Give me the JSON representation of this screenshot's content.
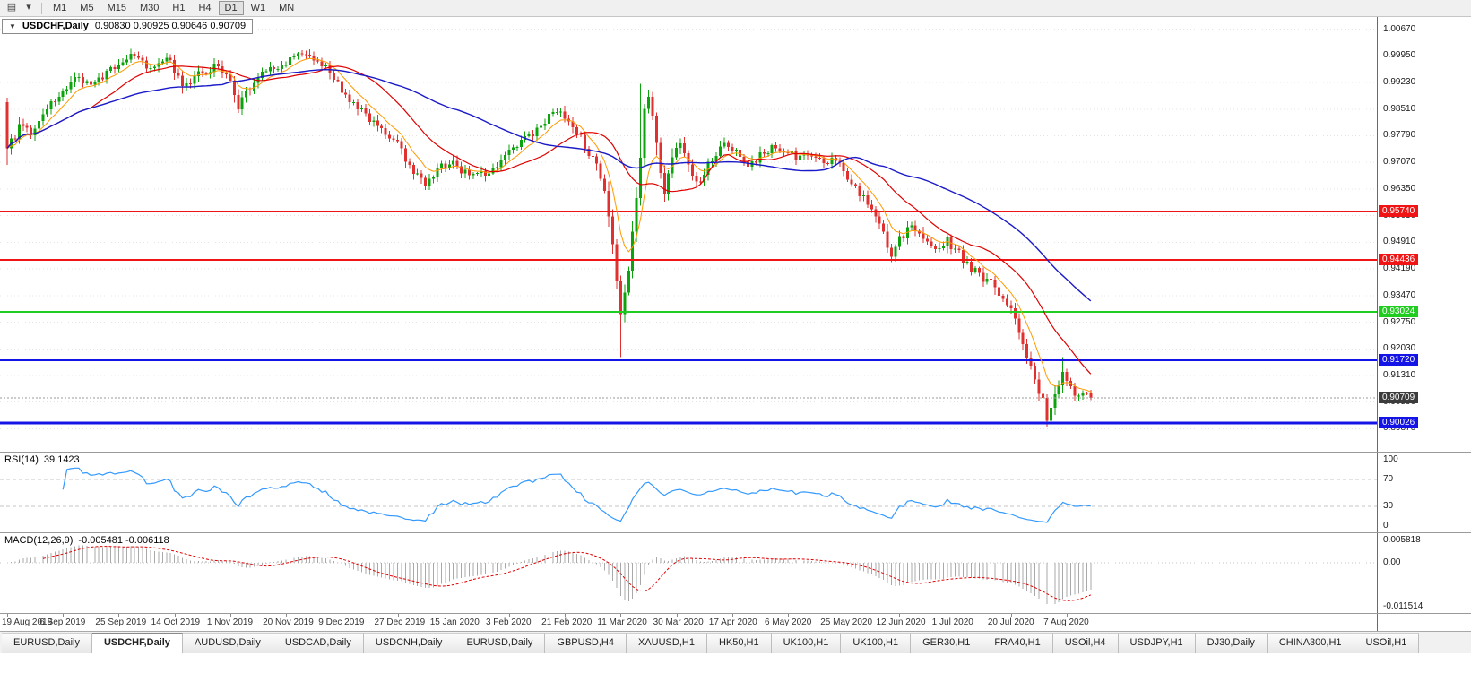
{
  "toolbar": {
    "icons": [
      {
        "name": "charts-icon",
        "glyph": "▤"
      },
      {
        "name": "dropdown-caret-icon",
        "glyph": "▾"
      }
    ],
    "timeframes": [
      "M1",
      "M5",
      "M15",
      "M30",
      "H1",
      "H4",
      "D1",
      "W1",
      "MN"
    ],
    "active_timeframe": "D1"
  },
  "chart": {
    "title_caret": "▼",
    "title": "USDCHF,Daily",
    "ohlc_label": "0.90830 0.90925 0.90646 0.90709"
  },
  "chart_data": {
    "type": "candlestick",
    "symbol": "USDCHF",
    "timeframe": "Daily",
    "candle_count": 273,
    "price_range": [
      0.8925,
      1.01
    ],
    "price_axis_labels": [
      "1.00670",
      "0.99950",
      "0.99230",
      "0.98510",
      "0.97790",
      "0.97070",
      "0.96350",
      "0.95630",
      "0.94910",
      "0.94190",
      "0.93470",
      "0.92750",
      "0.92030",
      "0.91310",
      "0.90590",
      "0.89870"
    ],
    "x_axis_dates": [
      "19 Aug 2019",
      "6 Sep 2019",
      "25 Sep 2019",
      "14 Oct 2019",
      "1 Nov 2019",
      "20 Nov 2019",
      "9 Dec 2019",
      "27 Dec 2019",
      "15 Jan 2020",
      "3 Feb 2020",
      "21 Feb 2020",
      "11 Mar 2020",
      "30 Mar 2020",
      "17 Apr 2020",
      "6 May 2020",
      "25 May 2020",
      "12 Jun 2020",
      "1 Jul 2020",
      "20 Jul 2020",
      "7 Aug 2020"
    ],
    "candles_per_date_label": 14,
    "first_candle": {
      "open": 0.987,
      "high": 0.9882,
      "low": 0.97,
      "close": 0.9745
    },
    "last_candle": {
      "open": 0.9083,
      "high": 0.90925,
      "low": 0.90646,
      "close": 0.90709
    },
    "close_anchors": [
      [
        0,
        0.9745
      ],
      [
        3,
        0.98
      ],
      [
        6,
        0.979
      ],
      [
        10,
        0.9855
      ],
      [
        14,
        0.99
      ],
      [
        18,
        0.9935
      ],
      [
        22,
        0.992
      ],
      [
        28,
        0.9975
      ],
      [
        32,
        0.9995
      ],
      [
        36,
        0.996
      ],
      [
        40,
        1.0
      ],
      [
        44,
        0.9915
      ],
      [
        48,
        0.9945
      ],
      [
        52,
        0.9965
      ],
      [
        56,
        0.993
      ],
      [
        58,
        0.986
      ],
      [
        62,
        0.992
      ],
      [
        66,
        0.996
      ],
      [
        70,
        0.9975
      ],
      [
        74,
        1.0005
      ],
      [
        78,
        0.999
      ],
      [
        82,
        0.9935
      ],
      [
        86,
        0.987
      ],
      [
        90,
        0.984
      ],
      [
        94,
        0.979
      ],
      [
        98,
        0.9755
      ],
      [
        102,
        0.968
      ],
      [
        105,
        0.9645
      ],
      [
        108,
        0.969
      ],
      [
        112,
        0.971
      ],
      [
        116,
        0.9665
      ],
      [
        120,
        0.968
      ],
      [
        124,
        0.9715
      ],
      [
        128,
        0.9755
      ],
      [
        132,
        0.978
      ],
      [
        136,
        0.983
      ],
      [
        139,
        0.985
      ],
      [
        142,
        0.98
      ],
      [
        145,
        0.9755
      ],
      [
        148,
        0.97
      ],
      [
        150,
        0.962
      ],
      [
        152,
        0.948
      ],
      [
        154,
        0.929
      ],
      [
        156,
        0.942
      ],
      [
        158,
        0.962
      ],
      [
        160,
        0.984
      ],
      [
        161,
        0.989
      ],
      [
        163,
        0.976
      ],
      [
        165,
        0.962
      ],
      [
        167,
        0.972
      ],
      [
        169,
        0.977
      ],
      [
        171,
        0.969
      ],
      [
        174,
        0.965
      ],
      [
        177,
        0.972
      ],
      [
        180,
        0.976
      ],
      [
        183,
        0.9745
      ],
      [
        186,
        0.97
      ],
      [
        189,
        0.9725
      ],
      [
        192,
        0.9745
      ],
      [
        196,
        0.974
      ],
      [
        199,
        0.9715
      ],
      [
        202,
        0.9735
      ],
      [
        205,
        0.97
      ],
      [
        208,
        0.972
      ],
      [
        211,
        0.966
      ],
      [
        214,
        0.962
      ],
      [
        217,
        0.959
      ],
      [
        220,
        0.952
      ],
      [
        222,
        0.944
      ],
      [
        224,
        0.95
      ],
      [
        227,
        0.9535
      ],
      [
        230,
        0.949
      ],
      [
        233,
        0.9465
      ],
      [
        236,
        0.9495
      ],
      [
        239,
        0.946
      ],
      [
        242,
        0.942
      ],
      [
        245,
        0.939
      ],
      [
        248,
        0.9375
      ],
      [
        250,
        0.934
      ],
      [
        252,
        0.931
      ],
      [
        254,
        0.925
      ],
      [
        256,
        0.918
      ],
      [
        258,
        0.912
      ],
      [
        260,
        0.906
      ],
      [
        261,
        0.9015
      ],
      [
        263,
        0.9085
      ],
      [
        265,
        0.9135
      ],
      [
        266,
        0.9125
      ],
      [
        268,
        0.9075
      ],
      [
        270,
        0.9095
      ],
      [
        272,
        0.90709
      ]
    ],
    "wick_overrides": [
      {
        "i": 154,
        "low": 0.918
      },
      {
        "i": 159,
        "high": 0.992
      },
      {
        "i": 261,
        "low": 0.9
      },
      {
        "i": 265,
        "high": 0.918
      }
    ],
    "moving_averages": [
      {
        "name": "ma-fast",
        "method": "ema",
        "period": 8,
        "color": "#FF9900",
        "width": 1
      },
      {
        "name": "ma-mid",
        "method": "sma",
        "period": 22,
        "color": "#E00000",
        "width": 1.2
      },
      {
        "name": "ma-slow",
        "method": "sma",
        "period": 55,
        "color": "#1A1AC8",
        "width": 1.4
      }
    ],
    "hlines": [
      {
        "price": 0.9574,
        "label": "0.95740",
        "color": "#F01414",
        "width": 2
      },
      {
        "price": 0.94436,
        "label": "0.94436",
        "color": "#F01414",
        "width": 2
      },
      {
        "price": 0.93024,
        "label": "0.93024",
        "color": "#1FCC1F",
        "width": 2
      },
      {
        "price": 0.9172,
        "label": "0.91720",
        "color": "#1414E6",
        "width": 2
      },
      {
        "price": 0.90026,
        "label": "0.90026",
        "color": "#1414E6",
        "width": 3
      }
    ],
    "current_price": {
      "value": 0.90709,
      "label": "0.90709",
      "badge_color": "#3C3C3C",
      "line_color": "#9a9a9a"
    },
    "colors": {
      "up": "#0CA30C",
      "down": "#E03131",
      "grid": "#E4E4E4",
      "rsi_line": "#3399FF",
      "level_line": "#C4C4C4",
      "macd_hist": "#A9A9A9",
      "macd_signal": "#E00000"
    },
    "rsi": {
      "label": "RSI(14)",
      "value_label": "39.1423",
      "period": 14,
      "axis_labels": [
        "100",
        "70",
        "30",
        "0"
      ],
      "axis_values": [
        100,
        70,
        30,
        0
      ],
      "dashed_levels": [
        70,
        30
      ]
    },
    "macd": {
      "label": "MACD(12,26,9)",
      "values_label": "-0.005481 -0.006118",
      "fast": 12,
      "slow": 26,
      "signal": 9,
      "axis_labels": [
        "0.005818",
        "0.00",
        "-0.011514"
      ],
      "axis_values": [
        0.005818,
        0.0,
        -0.011514
      ],
      "range": [
        -0.011514,
        0.005818
      ]
    }
  },
  "tabs": {
    "active_index": 1,
    "items": [
      "EURUSD,Daily",
      "USDCHF,Daily",
      "AUDUSD,Daily",
      "USDCAD,Daily",
      "USDCNH,Daily",
      "EURUSD,Daily",
      "GBPUSD,H4",
      "XAUUSD,H1",
      "HK50,H1",
      "UK100,H1",
      "UK100,H1",
      "GER30,H1",
      "FRA40,H1",
      "USOil,H4",
      "USDJPY,H1",
      "DJ30,Daily",
      "CHINA300,H1",
      "USOil,H1"
    ]
  }
}
